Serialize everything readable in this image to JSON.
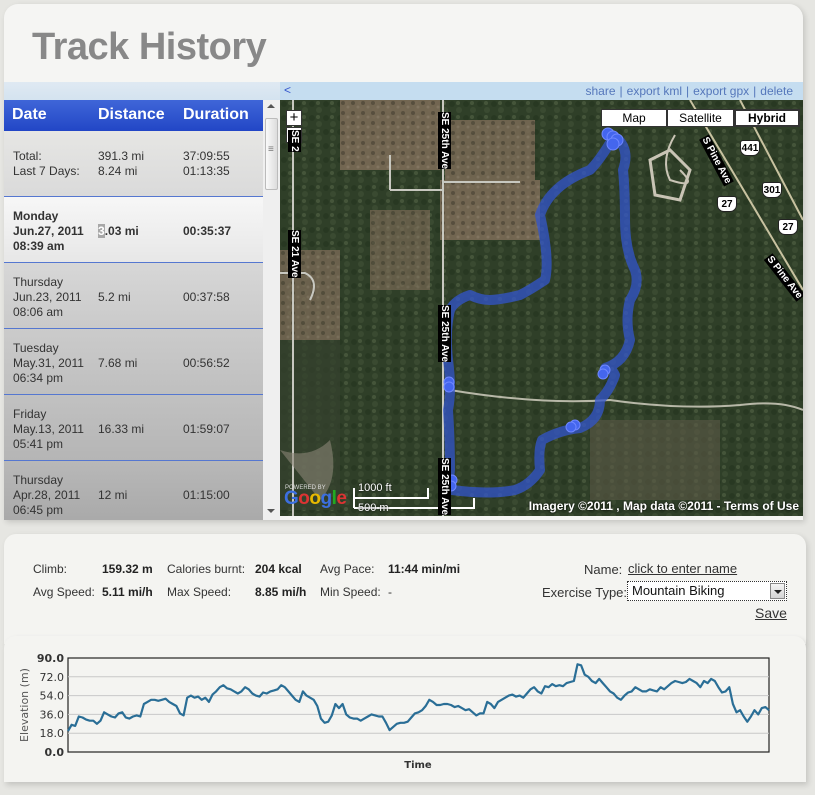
{
  "page": {
    "title": "Track History"
  },
  "list": {
    "columns": [
      "Date",
      "Distance",
      "Duration"
    ],
    "totals": {
      "labels": [
        "Total:",
        "Last 7 Days:"
      ],
      "distances": [
        "391.3 mi",
        "8.24 mi"
      ],
      "durations": [
        "37:09:55",
        "01:13:35"
      ]
    },
    "tracks": [
      {
        "day": "Monday",
        "date": "Jun.27, 2011",
        "time": "08:39 am",
        "distance_first_char": "3",
        "distance_rest": ".03 mi",
        "duration": "00:35:37",
        "selected": true
      },
      {
        "day": "Thursday",
        "date": "Jun.23, 2011",
        "time": "08:06 am",
        "distance": "5.2 mi",
        "duration": "00:37:58"
      },
      {
        "day": "Tuesday",
        "date": "May.31, 2011",
        "time": "06:34 pm",
        "distance": "7.68 mi",
        "duration": "00:56:52"
      },
      {
        "day": "Friday",
        "date": "May.13, 2011",
        "time": "05:41 pm",
        "distance": "16.33 mi",
        "duration": "01:59:07"
      },
      {
        "day": "Thursday",
        "date": "Apr.28, 2011",
        "time": "06:45 pm",
        "distance": "12 mi",
        "duration": "01:15:00"
      }
    ]
  },
  "map_toolbar": {
    "collapse": "<",
    "links": [
      "share",
      "export kml",
      "export gpx",
      "delete"
    ],
    "separator": "|"
  },
  "map": {
    "zoom_in": "+",
    "zoom_out": "−",
    "types": [
      "Map",
      "Satellite",
      "Hybrid"
    ],
    "active_type": "Hybrid",
    "roads": [
      "SE 25th Ave",
      "SE 21 Ave",
      "SE 2",
      "S Pine Ave",
      "S Pine Ave",
      "SE 25th Ave",
      "SE 25th Ave"
    ],
    "shields": [
      "441",
      "27",
      "301",
      "27"
    ],
    "scale": {
      "imperial": "1000 ft",
      "metric": "500 m"
    },
    "powered_by": "POWERED BY",
    "logo": "Google",
    "attribution": "Imagery ©2011 , Map data ©2011 - Terms of Use",
    "track_color": "#3355cc"
  },
  "stats": {
    "climb_label": "Climb:",
    "climb": "159.32 m",
    "calories_label": "Calories burnt:",
    "calories": "204 kcal",
    "avg_pace_label": "Avg Pace:",
    "avg_pace": "11:44 min/mi",
    "avg_speed_label": "Avg Speed:",
    "avg_speed": "5.11 mi/h",
    "max_speed_label": "Max Speed:",
    "max_speed": "8.85 mi/h",
    "min_speed_label": "Min Speed:",
    "min_speed": "-",
    "name_label": "Name:",
    "name_link": "click to enter name",
    "exercise_label": "Exercise Type:",
    "exercise_value": "Mountain Biking",
    "save": "Save"
  },
  "chart_data": {
    "type": "line",
    "title": "",
    "xlabel": "Time",
    "ylabel": "Elevation (m)",
    "ylim": [
      0,
      90
    ],
    "yticks": [
      "0.0",
      "18.0",
      "36.0",
      "54.0",
      "72.0",
      "90.0"
    ],
    "grid": true,
    "line_color": "#2a6e96",
    "series": [
      {
        "name": "Elevation",
        "values": [
          20,
          26,
          25,
          34,
          33,
          31,
          30,
          30,
          27,
          30,
          38,
          36,
          34,
          33,
          37,
          38,
          33,
          32,
          34,
          35,
          34,
          46,
          48,
          50,
          50,
          49,
          50,
          51,
          48,
          46,
          44,
          37,
          35,
          52,
          54,
          52,
          53,
          50,
          52,
          48,
          55,
          58,
          62,
          64,
          61,
          60,
          58,
          56,
          58,
          62,
          60,
          56,
          54,
          53,
          57,
          56,
          58,
          59,
          60,
          64,
          62,
          58,
          54,
          50,
          48,
          58,
          54,
          52,
          50,
          44,
          32,
          28,
          29,
          35,
          46,
          42,
          46,
          36,
          33,
          32,
          32,
          30,
          32,
          34,
          36,
          35,
          34,
          34,
          28,
          21,
          24,
          27,
          28,
          28,
          29,
          33,
          37,
          38,
          40,
          44,
          50,
          48,
          45,
          45,
          46,
          46,
          45,
          43,
          44,
          42,
          40,
          41,
          38,
          35,
          37,
          37,
          48,
          46,
          42,
          48,
          50,
          52,
          54,
          55,
          53,
          54,
          52,
          56,
          60,
          62,
          58,
          56,
          63,
          62,
          65,
          63,
          64,
          63,
          66,
          67,
          68,
          84,
          83,
          74,
          72,
          68,
          66,
          70,
          66,
          62,
          58,
          56,
          52,
          50,
          54,
          57,
          58,
          62,
          60,
          58,
          58,
          60,
          59,
          58,
          62,
          60,
          63,
          66,
          68,
          67,
          66,
          67,
          70,
          68,
          66,
          62,
          68,
          66,
          70,
          68,
          62,
          57,
          58,
          62,
          46,
          38,
          40,
          34,
          29,
          34,
          40,
          36,
          42,
          43,
          40
        ]
      }
    ]
  }
}
